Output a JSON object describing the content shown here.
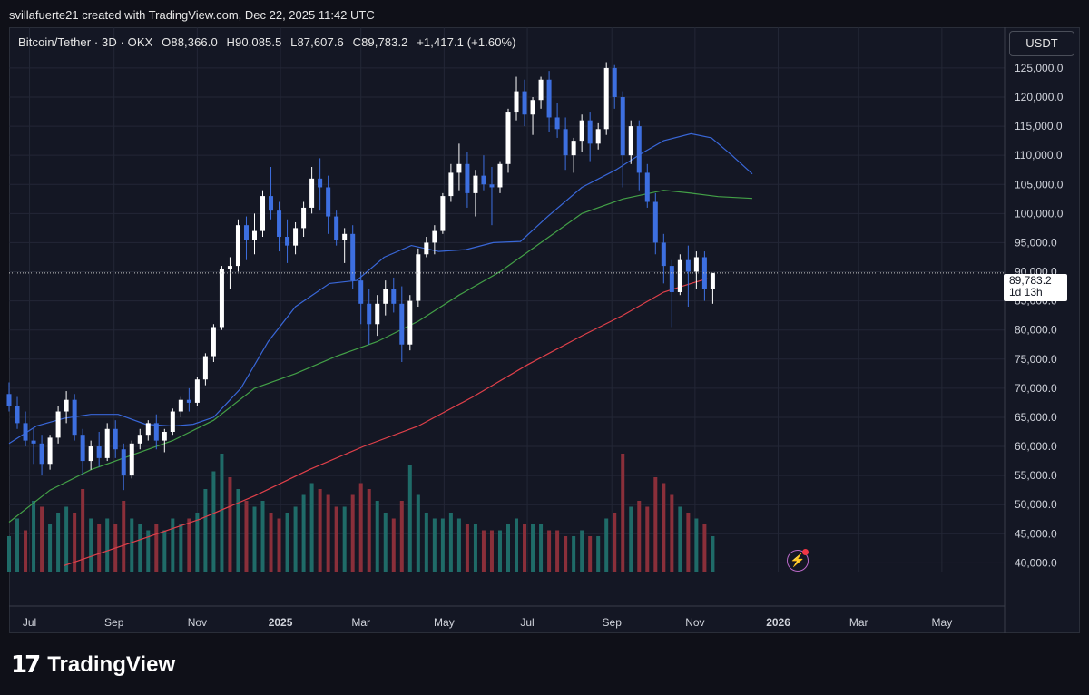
{
  "header": {
    "attribution": "svillafuerte21 created with TradingView.com, Dec 22, 2025 11:42 UTC"
  },
  "legend": {
    "symbol": "Bitcoin/Tether · 3D · OKX",
    "open": "O88,366.0",
    "high": "H90,085.5",
    "low": "L87,607.6",
    "close": "C89,783.2",
    "change": "+1,417.1 (+1.60%)"
  },
  "currency": "USDT",
  "last_price": {
    "value": "89,783.2",
    "countdown": "1d 13h"
  },
  "brand": {
    "logo_mark": "17",
    "name": "TradingView"
  },
  "icons": {
    "lightning": "lightning-icon"
  },
  "colors": {
    "bull": "#ffffff",
    "bear": "#3d6fe0",
    "ma_blue": "#3967d8",
    "ma_green": "#43a047",
    "ma_red": "#e0404a",
    "vol_up": "#1f6b68",
    "vol_down": "#8a2f3a"
  },
  "chart_data": {
    "type": "candlestick",
    "title": "Bitcoin/Tether · 3D · OKX",
    "y_ticks": [
      "125,000.0",
      "120,000.0",
      "115,000.0",
      "110,000.0",
      "105,000.0",
      "100,000.0",
      "95,000.0",
      "90,000.0",
      "85,000.0",
      "80,000.0",
      "75,000.0",
      "70,000.0",
      "65,000.0",
      "60,000.0",
      "55,000.0",
      "50,000.0",
      "45,000.0",
      "40,000.0"
    ],
    "y_tick_values": [
      125000,
      120000,
      115000,
      110000,
      105000,
      100000,
      95000,
      90000,
      85000,
      80000,
      75000,
      70000,
      65000,
      60000,
      55000,
      50000,
      45000,
      40000
    ],
    "ylim": [
      38500,
      132000
    ],
    "x_ticks": [
      "Jul",
      "Sep",
      "Nov",
      "2025",
      "Mar",
      "May",
      "Jul",
      "Sep",
      "Nov",
      "2026",
      "Mar",
      "May"
    ],
    "x_tick_days": [
      15,
      77,
      138,
      199,
      258,
      319,
      380,
      442,
      503,
      564,
      623,
      684
    ],
    "x_range_days": [
      0,
      730
    ],
    "x_origin": "2024-06-16",
    "grid": true,
    "close_marker": 89783.2,
    "moving_averages": [
      {
        "color": "blue",
        "points": [
          [
            0,
            60500
          ],
          [
            20,
            63500
          ],
          [
            40,
            64800
          ],
          [
            60,
            65500
          ],
          [
            80,
            65500
          ],
          [
            100,
            63800
          ],
          [
            120,
            63500
          ],
          [
            135,
            63800
          ],
          [
            150,
            65000
          ],
          [
            170,
            70000
          ],
          [
            190,
            78000
          ],
          [
            210,
            84000
          ],
          [
            235,
            88000
          ],
          [
            255,
            88500
          ],
          [
            275,
            92500
          ],
          [
            295,
            94500
          ],
          [
            315,
            93500
          ],
          [
            335,
            93800
          ],
          [
            355,
            95000
          ],
          [
            375,
            95200
          ],
          [
            395,
            99500
          ],
          [
            420,
            104500
          ],
          [
            445,
            107500
          ],
          [
            465,
            110500
          ],
          [
            480,
            112500
          ],
          [
            500,
            113700
          ],
          [
            515,
            113000
          ],
          [
            530,
            110000
          ],
          [
            545,
            106800
          ]
        ]
      },
      {
        "color": "green",
        "points": [
          [
            0,
            47000
          ],
          [
            30,
            52500
          ],
          [
            60,
            56000
          ],
          [
            90,
            58500
          ],
          [
            120,
            61000
          ],
          [
            150,
            64500
          ],
          [
            180,
            70000
          ],
          [
            210,
            72500
          ],
          [
            240,
            75500
          ],
          [
            270,
            78000
          ],
          [
            300,
            81500
          ],
          [
            330,
            86000
          ],
          [
            360,
            90000
          ],
          [
            390,
            95000
          ],
          [
            420,
            100000
          ],
          [
            450,
            102500
          ],
          [
            480,
            104000
          ],
          [
            500,
            103500
          ],
          [
            520,
            102900
          ],
          [
            545,
            102600
          ]
        ]
      },
      {
        "color": "red",
        "points": [
          [
            40,
            39500
          ],
          [
            90,
            43500
          ],
          [
            140,
            47500
          ],
          [
            180,
            51500
          ],
          [
            220,
            56000
          ],
          [
            260,
            60000
          ],
          [
            300,
            63500
          ],
          [
            340,
            68500
          ],
          [
            380,
            74000
          ],
          [
            420,
            79000
          ],
          [
            450,
            82500
          ],
          [
            480,
            86500
          ],
          [
            500,
            88000
          ],
          [
            512,
            88800
          ]
        ]
      }
    ],
    "candles_approx": [
      [
        0,
        69000,
        71000,
        66000,
        67000
      ],
      [
        6,
        67000,
        68500,
        63000,
        64000
      ],
      [
        12,
        64000,
        66000,
        60000,
        61000
      ],
      [
        18,
        61000,
        63000,
        57000,
        60500
      ],
      [
        24,
        60500,
        62000,
        55000,
        57000
      ],
      [
        30,
        57000,
        62000,
        56000,
        61500
      ],
      [
        36,
        61500,
        67000,
        60500,
        66000
      ],
      [
        42,
        66000,
        69500,
        64000,
        68000
      ],
      [
        48,
        68000,
        69000,
        61000,
        62000
      ],
      [
        54,
        62000,
        63000,
        55000,
        57500
      ],
      [
        60,
        57500,
        61000,
        56000,
        60000
      ],
      [
        66,
        60000,
        62500,
        56500,
        58000
      ],
      [
        72,
        58000,
        64000,
        57500,
        63000
      ],
      [
        78,
        63000,
        64500,
        58000,
        59500
      ],
      [
        84,
        59500,
        60500,
        52500,
        55000
      ],
      [
        90,
        55000,
        61000,
        54500,
        60500
      ],
      [
        96,
        60500,
        63000,
        59500,
        62000
      ],
      [
        102,
        62000,
        64500,
        61000,
        64000
      ],
      [
        108,
        64000,
        65500,
        59500,
        61000
      ],
      [
        114,
        61000,
        63000,
        59000,
        62500
      ],
      [
        120,
        62500,
        66500,
        62000,
        66000
      ],
      [
        126,
        66000,
        68500,
        65000,
        68000
      ],
      [
        132,
        68000,
        70000,
        66000,
        67500
      ],
      [
        138,
        67500,
        72000,
        67000,
        71500
      ],
      [
        144,
        71500,
        76000,
        70500,
        75500
      ],
      [
        150,
        75500,
        81000,
        74500,
        80500
      ],
      [
        156,
        80500,
        91000,
        80000,
        90500
      ],
      [
        162,
        90500,
        92500,
        87000,
        91000
      ],
      [
        168,
        91000,
        99000,
        90000,
        98000
      ],
      [
        174,
        98000,
        99500,
        92000,
        95500
      ],
      [
        180,
        95500,
        100000,
        93000,
        97000
      ],
      [
        186,
        97000,
        104000,
        96000,
        103000
      ],
      [
        192,
        103000,
        108000,
        99000,
        100500
      ],
      [
        198,
        100500,
        102000,
        93500,
        96000
      ],
      [
        204,
        96000,
        99000,
        91500,
        94500
      ],
      [
        210,
        94500,
        98500,
        93000,
        97500
      ],
      [
        216,
        97500,
        102000,
        96000,
        101000
      ],
      [
        222,
        101000,
        108000,
        100000,
        106000
      ],
      [
        228,
        106000,
        109500,
        100500,
        104500
      ],
      [
        234,
        104500,
        106500,
        96500,
        99500
      ],
      [
        240,
        99500,
        100500,
        94500,
        95500
      ],
      [
        246,
        95500,
        97500,
        91500,
        96500
      ],
      [
        252,
        96500,
        98000,
        87000,
        88500
      ],
      [
        258,
        88500,
        90000,
        81000,
        84500
      ],
      [
        264,
        84500,
        87000,
        77500,
        81000
      ],
      [
        270,
        81000,
        86000,
        79000,
        84500
      ],
      [
        276,
        84500,
        88500,
        82500,
        87000
      ],
      [
        282,
        87000,
        89000,
        83000,
        84500
      ],
      [
        288,
        84500,
        87500,
        74500,
        77500
      ],
      [
        294,
        77500,
        86000,
        76500,
        85000
      ],
      [
        300,
        85000,
        94000,
        84000,
        93000
      ],
      [
        306,
        93000,
        96000,
        92500,
        95000
      ],
      [
        312,
        95000,
        98000,
        93000,
        97000
      ],
      [
        318,
        97000,
        103500,
        96500,
        103000
      ],
      [
        324,
        103000,
        108500,
        102000,
        107000
      ],
      [
        330,
        107000,
        112000,
        104000,
        108500
      ],
      [
        336,
        108500,
        110500,
        101000,
        103500
      ],
      [
        342,
        103500,
        107500,
        99500,
        106500
      ],
      [
        348,
        106500,
        110000,
        104000,
        105000
      ],
      [
        354,
        105000,
        108000,
        98000,
        104500
      ],
      [
        360,
        104500,
        109000,
        103500,
        108500
      ],
      [
        366,
        108500,
        118000,
        107000,
        117500
      ],
      [
        372,
        117500,
        123500,
        116000,
        121000
      ],
      [
        378,
        121000,
        123000,
        115000,
        117000
      ],
      [
        384,
        117000,
        120000,
        113500,
        119500
      ],
      [
        390,
        119500,
        123500,
        118000,
        123000
      ],
      [
        396,
        123000,
        124500,
        114000,
        116500
      ],
      [
        402,
        116500,
        119000,
        113000,
        114500
      ],
      [
        408,
        114500,
        116500,
        107500,
        110000
      ],
      [
        414,
        110000,
        113000,
        107000,
        112500
      ],
      [
        420,
        112500,
        117000,
        110500,
        116000
      ],
      [
        426,
        116000,
        117500,
        109000,
        112000
      ],
      [
        432,
        112000,
        115500,
        111000,
        114500
      ],
      [
        438,
        114500,
        126000,
        113500,
        125000
      ],
      [
        444,
        125000,
        125500,
        118000,
        120000
      ],
      [
        450,
        120000,
        121000,
        104500,
        110000
      ],
      [
        456,
        110000,
        116000,
        108500,
        115000
      ],
      [
        462,
        115000,
        116000,
        104000,
        107000
      ],
      [
        468,
        107000,
        108500,
        101000,
        102000
      ],
      [
        474,
        102000,
        103500,
        93000,
        95000
      ],
      [
        480,
        95000,
        96500,
        88000,
        91000
      ],
      [
        486,
        91000,
        92000,
        80500,
        86500
      ],
      [
        492,
        86500,
        93000,
        86000,
        92000
      ],
      [
        498,
        92000,
        94500,
        84000,
        90000
      ],
      [
        504,
        90000,
        93500,
        87000,
        92500
      ],
      [
        510,
        92500,
        93500,
        85000,
        87000
      ],
      [
        516,
        87000,
        89500,
        84500,
        89800
      ]
    ],
    "volume_approx": [
      [
        0,
        3,
        0.3
      ],
      [
        6,
        3,
        0.45
      ],
      [
        12,
        2,
        0.35
      ],
      [
        18,
        3,
        0.6
      ],
      [
        24,
        2,
        0.55
      ],
      [
        30,
        3,
        0.4
      ],
      [
        36,
        3,
        0.5
      ],
      [
        42,
        3,
        0.55
      ],
      [
        48,
        2,
        0.5
      ],
      [
        54,
        2,
        0.7
      ],
      [
        60,
        3,
        0.45
      ],
      [
        66,
        2,
        0.4
      ],
      [
        72,
        3,
        0.45
      ],
      [
        78,
        2,
        0.4
      ],
      [
        84,
        2,
        0.6
      ],
      [
        90,
        3,
        0.45
      ],
      [
        96,
        3,
        0.4
      ],
      [
        102,
        3,
        0.35
      ],
      [
        108,
        2,
        0.4
      ],
      [
        114,
        3,
        0.35
      ],
      [
        120,
        3,
        0.45
      ],
      [
        126,
        3,
        0.4
      ],
      [
        132,
        2,
        0.45
      ],
      [
        138,
        3,
        0.5
      ],
      [
        144,
        3,
        0.7
      ],
      [
        150,
        3,
        0.85
      ],
      [
        156,
        3,
        1.0
      ],
      [
        162,
        2,
        0.8
      ],
      [
        168,
        3,
        0.7
      ],
      [
        174,
        2,
        0.6
      ],
      [
        180,
        3,
        0.55
      ],
      [
        186,
        3,
        0.6
      ],
      [
        192,
        2,
        0.5
      ],
      [
        198,
        2,
        0.45
      ],
      [
        204,
        3,
        0.5
      ],
      [
        210,
        3,
        0.55
      ],
      [
        216,
        3,
        0.65
      ],
      [
        222,
        3,
        0.75
      ],
      [
        228,
        2,
        0.7
      ],
      [
        234,
        2,
        0.65
      ],
      [
        240,
        2,
        0.55
      ],
      [
        246,
        3,
        0.55
      ],
      [
        252,
        2,
        0.65
      ],
      [
        258,
        2,
        0.75
      ],
      [
        264,
        2,
        0.7
      ],
      [
        270,
        3,
        0.6
      ],
      [
        276,
        3,
        0.5
      ],
      [
        282,
        2,
        0.45
      ],
      [
        288,
        2,
        0.6
      ],
      [
        294,
        3,
        0.9
      ],
      [
        300,
        3,
        0.65
      ],
      [
        306,
        3,
        0.5
      ],
      [
        312,
        3,
        0.45
      ],
      [
        318,
        3,
        0.45
      ],
      [
        324,
        3,
        0.5
      ],
      [
        330,
        3,
        0.45
      ],
      [
        336,
        2,
        0.4
      ],
      [
        342,
        3,
        0.4
      ],
      [
        348,
        2,
        0.35
      ],
      [
        354,
        2,
        0.35
      ],
      [
        360,
        3,
        0.35
      ],
      [
        366,
        3,
        0.4
      ],
      [
        372,
        3,
        0.45
      ],
      [
        378,
        2,
        0.4
      ],
      [
        384,
        3,
        0.4
      ],
      [
        390,
        3,
        0.4
      ],
      [
        396,
        2,
        0.35
      ],
      [
        402,
        2,
        0.35
      ],
      [
        408,
        2,
        0.3
      ],
      [
        414,
        3,
        0.3
      ],
      [
        420,
        3,
        0.35
      ],
      [
        426,
        2,
        0.3
      ],
      [
        432,
        3,
        0.3
      ],
      [
        438,
        3,
        0.45
      ],
      [
        444,
        2,
        0.5
      ],
      [
        450,
        2,
        1.0
      ],
      [
        456,
        3,
        0.55
      ],
      [
        462,
        2,
        0.6
      ],
      [
        468,
        2,
        0.55
      ],
      [
        474,
        2,
        0.8
      ],
      [
        480,
        2,
        0.75
      ],
      [
        486,
        2,
        0.65
      ],
      [
        492,
        3,
        0.55
      ],
      [
        498,
        2,
        0.5
      ],
      [
        504,
        3,
        0.45
      ],
      [
        510,
        2,
        0.4
      ],
      [
        516,
        3,
        0.3
      ]
    ]
  }
}
